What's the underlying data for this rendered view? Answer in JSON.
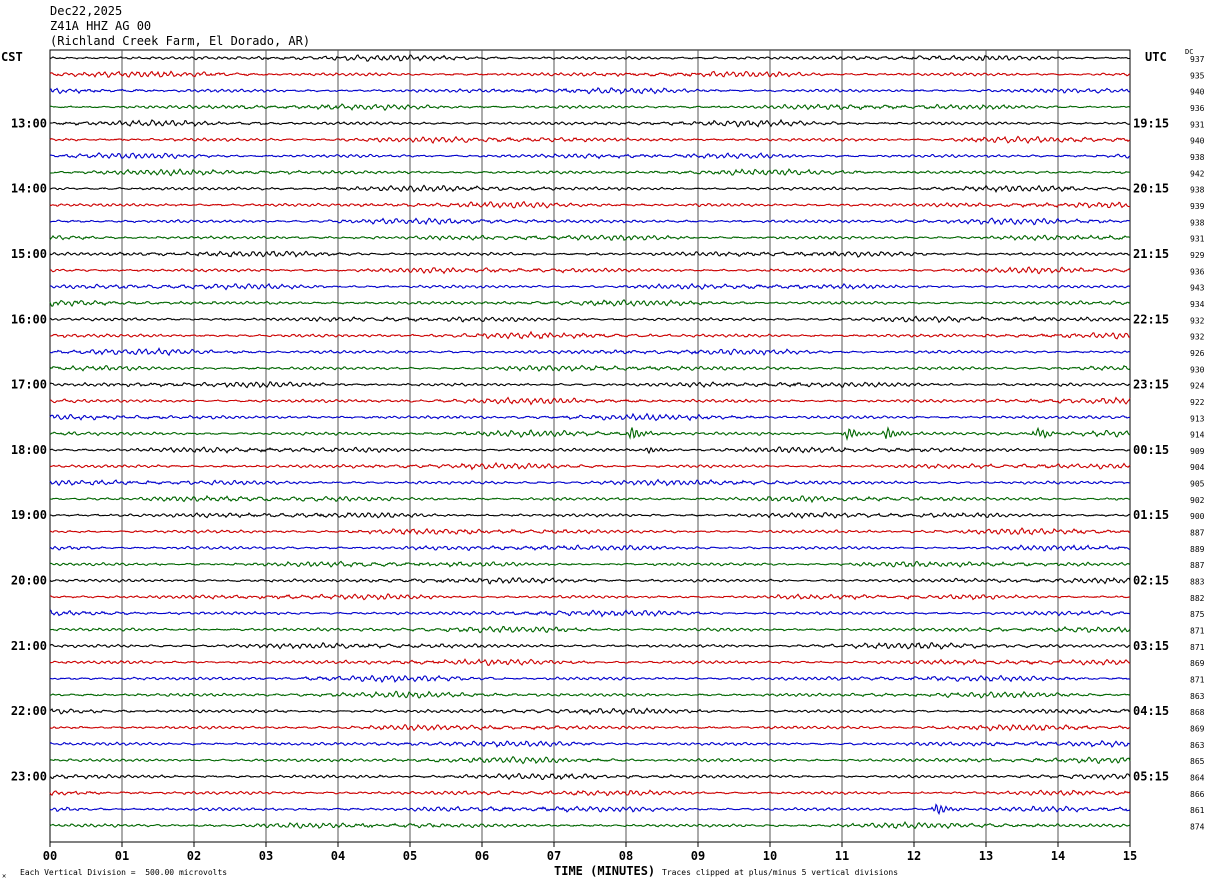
{
  "header": {
    "date": "Dec22,2025",
    "station": "Z41A HHZ AG 00",
    "location": "(Richland Creek Farm, El Dorado, AR)"
  },
  "left_tz": "CST",
  "right_tz": "UTC",
  "dc_label": "DC",
  "footer": {
    "division": "Each Vertical Division =  500.00 microvolts",
    "xlabel": "TIME (MINUTES)",
    "clip": "Traces clipped at plus/minus 5 vertical divisions",
    "mark": "✕"
  },
  "chart_data": {
    "type": "line",
    "title": "",
    "xlabel": "TIME (MINUTES)",
    "xlim": [
      0,
      15
    ],
    "x_ticks": [
      "00",
      "01",
      "02",
      "03",
      "04",
      "05",
      "06",
      "07",
      "08",
      "09",
      "10",
      "11",
      "12",
      "13",
      "14",
      "15"
    ],
    "trace_colors": [
      "#000000",
      "#cc0000",
      "#0000cc",
      "#006600"
    ],
    "trace_interval_minutes": 15,
    "left_time_labels": [
      "13:00",
      "14:00",
      "15:00",
      "16:00",
      "17:00",
      "18:00",
      "19:00",
      "20:00",
      "21:00",
      "22:00",
      "23:00"
    ],
    "right_time_labels": [
      "19:15",
      "20:15",
      "21:15",
      "22:15",
      "23:15",
      "00:15",
      "01:15",
      "02:15",
      "03:15",
      "04:15",
      "05:15"
    ],
    "dc_offsets": [
      937,
      935,
      940,
      936,
      931,
      940,
      938,
      942,
      938,
      939,
      938,
      931,
      929,
      936,
      943,
      934,
      932,
      932,
      926,
      930,
      924,
      922,
      913,
      914,
      909,
      904,
      905,
      902,
      900,
      887,
      889,
      887,
      883,
      882,
      875,
      871,
      871,
      869,
      871,
      863,
      868,
      869,
      863,
      865,
      864,
      866,
      861,
      874
    ],
    "events": [
      {
        "trace": 23,
        "minutes": [
          8.05,
          11.05,
          11.6,
          13.7
        ],
        "amplitude": "moderate"
      },
      {
        "trace": 24,
        "minutes": [
          8.3
        ],
        "amplitude": "small"
      },
      {
        "trace": 46,
        "minutes": [
          12.3
        ],
        "amplitude": "moderate"
      }
    ]
  }
}
